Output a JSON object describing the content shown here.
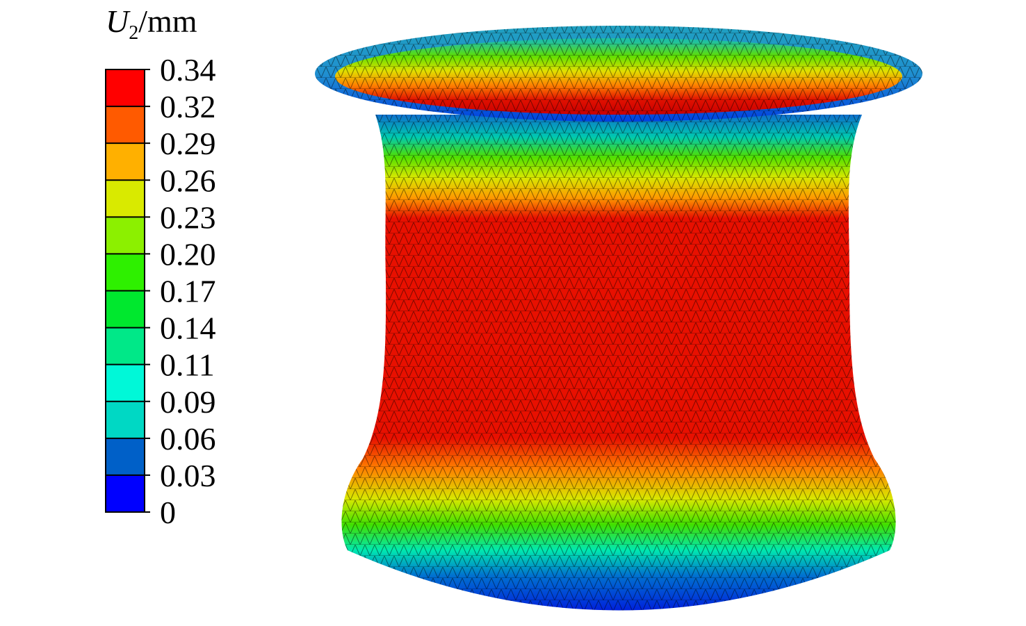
{
  "legend": {
    "title_var": "U",
    "title_sub": "2",
    "title_unit": "/mm",
    "ticks": [
      "0.34",
      "0.32",
      "0.29",
      "0.26",
      "0.23",
      "0.20",
      "0.17",
      "0.14",
      "0.11",
      "0.09",
      "0.06",
      "0.03",
      "0"
    ],
    "colors": [
      "#ff0000",
      "#ff5a00",
      "#ffb000",
      "#d9ea00",
      "#8cf000",
      "#2ef000",
      "#00e82e",
      "#00e888",
      "#00f8d8",
      "#00d8c4",
      "#0060c8",
      "#0000ff"
    ]
  }
}
